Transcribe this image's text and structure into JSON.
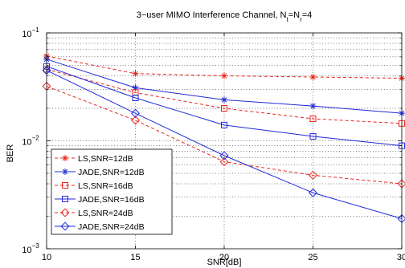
{
  "chart_data": {
    "type": "line",
    "title_main": "3−user MIMO Interference Channel, N",
    "title_sub1": "t",
    "title_mid": "=N",
    "title_sub2": "r",
    "title_end": "=4",
    "xlabel": "SNR[dB]",
    "ylabel": "BER",
    "x": [
      10,
      15,
      20,
      25,
      30
    ],
    "xlim": [
      10,
      30
    ],
    "ylim": [
      0.001,
      0.1
    ],
    "yscale": "log",
    "grid": true,
    "legend_position": "bottom-left",
    "x_ticks": [
      "10",
      "15",
      "20",
      "25",
      "30"
    ],
    "y_ticks": [
      {
        "value": 0.1,
        "base": "10",
        "exp": "−1"
      },
      {
        "value": 0.01,
        "base": "10",
        "exp": "−2"
      },
      {
        "value": 0.001,
        "base": "10",
        "exp": "−3"
      }
    ],
    "series": [
      {
        "name": "LS,SNR=12dB",
        "color": "#e8261c",
        "dash": "dashed",
        "marker": "star",
        "values": [
          0.061,
          0.042,
          0.04,
          0.039,
          0.038
        ]
      },
      {
        "name": "JADE,SNR=12dB",
        "color": "#1f2bd8",
        "dash": "solid",
        "marker": "star",
        "values": [
          0.057,
          0.031,
          0.024,
          0.021,
          0.018
        ]
      },
      {
        "name": "LS,SNR=16dB",
        "color": "#e8261c",
        "dash": "dashed",
        "marker": "square",
        "values": [
          0.046,
          0.028,
          0.02,
          0.016,
          0.0145
        ]
      },
      {
        "name": "JADE,SNR=16dB",
        "color": "#1f2bd8",
        "dash": "solid",
        "marker": "square",
        "values": [
          0.049,
          0.025,
          0.014,
          0.011,
          0.009
        ]
      },
      {
        "name": "LS,SNR=24dB",
        "color": "#e8261c",
        "dash": "dashed",
        "marker": "diamond",
        "values": [
          0.032,
          0.0155,
          0.0064,
          0.0048,
          0.004
        ]
      },
      {
        "name": "JADE,SNR=24dB",
        "color": "#1f2bd8",
        "dash": "solid",
        "marker": "diamond",
        "values": [
          0.045,
          0.018,
          0.0073,
          0.0033,
          0.0019
        ]
      }
    ]
  }
}
